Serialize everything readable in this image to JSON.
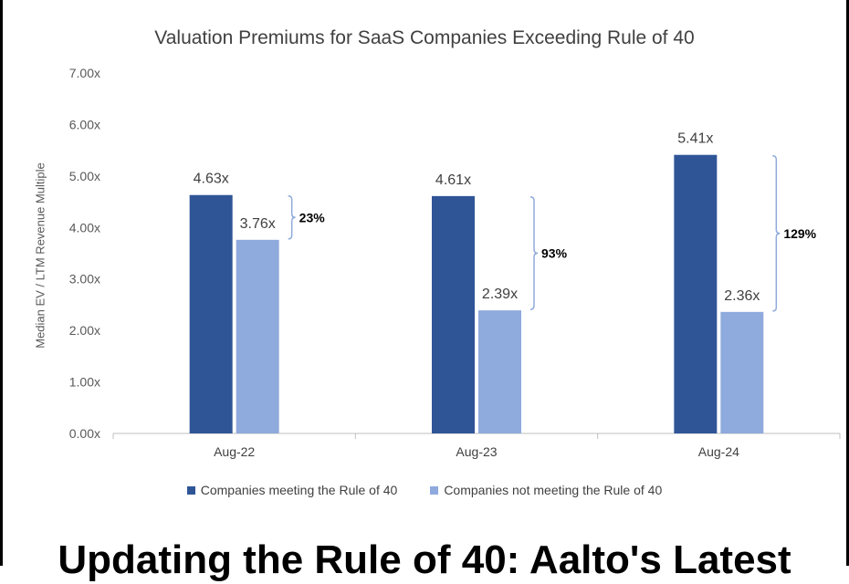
{
  "chart_data": {
    "type": "bar",
    "title": "Valuation Premiums for SaaS Companies Exceeding Rule of 40",
    "xlabel": "",
    "ylabel": "Median EV / LTM Revenue Multiple",
    "categories": [
      "Aug-22",
      "Aug-23",
      "Aug-24"
    ],
    "series": [
      {
        "name": "Companies meeting the Rule of 40",
        "values": [
          4.63,
          4.61,
          5.41
        ],
        "data_labels": [
          "4.63x",
          "4.61x",
          "5.41x"
        ],
        "color": "#2f5597"
      },
      {
        "name": "Companies not meeting the Rule of 40",
        "values": [
          3.76,
          2.39,
          2.36
        ],
        "data_labels": [
          "3.76x",
          "2.39x",
          "2.36x"
        ],
        "color": "#8faadc"
      }
    ],
    "premiums": [
      "23%",
      "93%",
      "129%"
    ],
    "ylim": [
      0,
      7
    ],
    "yticks": [
      0,
      1,
      2,
      3,
      4,
      5,
      6,
      7
    ],
    "ytick_labels": [
      "0.00x",
      "1.00x",
      "2.00x",
      "3.00x",
      "4.00x",
      "5.00x",
      "6.00x",
      "7.00x"
    ],
    "grid": false,
    "legend": "bottom"
  },
  "footer": {
    "title": "Updating the Rule of 40: Aalto's Latest"
  }
}
